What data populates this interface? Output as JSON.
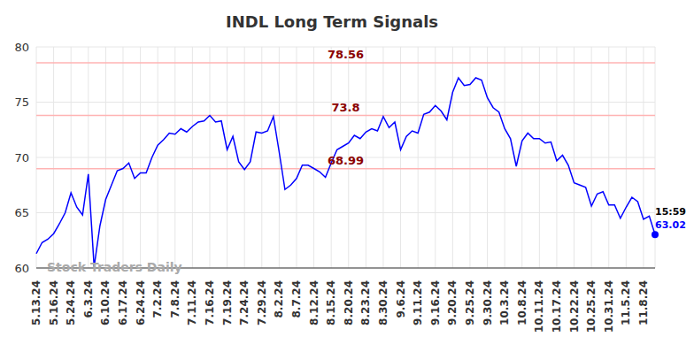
{
  "chart_data": {
    "type": "line",
    "title": "INDL Long Term Signals",
    "watermark": "Stock Traders Daily",
    "last_point": {
      "time": "15:59",
      "value": 63.02
    },
    "color": "#0000ff",
    "grid": true,
    "ylim": [
      60,
      80
    ],
    "yticks": [
      60,
      65,
      70,
      75,
      80
    ],
    "reference_lines": [
      78.56,
      73.8,
      68.99
    ],
    "categories": [
      "5.13.24",
      null,
      null,
      "5.16.24",
      null,
      null,
      "5.24.24",
      null,
      null,
      "6.3.24",
      null,
      null,
      "6.10.24",
      null,
      null,
      "6.17.24",
      null,
      null,
      "6.24.24",
      null,
      null,
      "7.2.24",
      null,
      null,
      "7.8.24",
      null,
      null,
      "7.11.24",
      null,
      null,
      "7.16.24",
      null,
      null,
      "7.19.24",
      null,
      null,
      "7.24.24",
      null,
      null,
      "7.29.24",
      null,
      null,
      "8.2.24",
      null,
      null,
      "8.7.24",
      null,
      null,
      "8.12.24",
      null,
      null,
      "8.15.24",
      null,
      null,
      "8.20.24",
      null,
      null,
      "8.23.24",
      null,
      null,
      "8.30.24",
      null,
      null,
      "9.6.24",
      null,
      null,
      "9.11.24",
      null,
      null,
      "9.16.24",
      null,
      null,
      "9.20.24",
      null,
      null,
      "9.25.24",
      null,
      null,
      "9.30.24",
      null,
      null,
      "10.3.24",
      null,
      null,
      "10.8.24",
      null,
      null,
      "10.11.24",
      null,
      null,
      "10.17.24",
      null,
      null,
      "10.22.24",
      null,
      null,
      "10.25.24",
      null,
      null,
      "10.31.24",
      null,
      null,
      "11.5.24",
      null,
      null,
      "11.8.24",
      null,
      null
    ],
    "values": [
      61.3,
      62.3,
      62.6,
      63.1,
      64.0,
      65.0,
      66.8,
      65.5,
      64.8,
      68.5,
      60.1,
      63.8,
      66.2,
      67.5,
      68.8,
      69.0,
      69.5,
      68.1,
      68.6,
      68.6,
      70.0,
      71.1,
      71.6,
      72.2,
      72.1,
      72.6,
      72.3,
      72.8,
      73.2,
      73.3,
      73.8,
      73.2,
      73.3,
      70.7,
      71.9,
      69.6,
      68.9,
      69.6,
      72.3,
      72.2,
      72.4,
      73.7,
      70.5,
      67.1,
      67.5,
      68.1,
      69.3,
      69.3,
      69.0,
      68.7,
      68.2,
      69.5,
      70.7,
      71.0,
      71.3,
      72.0,
      71.7,
      72.3,
      72.6,
      72.4,
      73.7,
      72.7,
      73.2,
      70.7,
      71.9,
      72.4,
      72.2,
      73.9,
      74.1,
      74.7,
      74.2,
      73.4,
      75.9,
      77.2,
      76.5,
      76.6,
      77.2,
      77.0,
      75.4,
      74.5,
      74.1,
      72.6,
      71.7,
      69.2,
      71.5,
      72.2,
      71.7,
      71.7,
      71.3,
      71.4,
      69.7,
      70.2,
      69.3,
      67.7,
      67.5,
      67.3,
      65.6,
      66.7,
      66.9,
      65.7,
      65.7,
      64.5,
      65.5,
      66.4,
      66.0,
      64.4,
      64.7,
      63.02
    ]
  }
}
